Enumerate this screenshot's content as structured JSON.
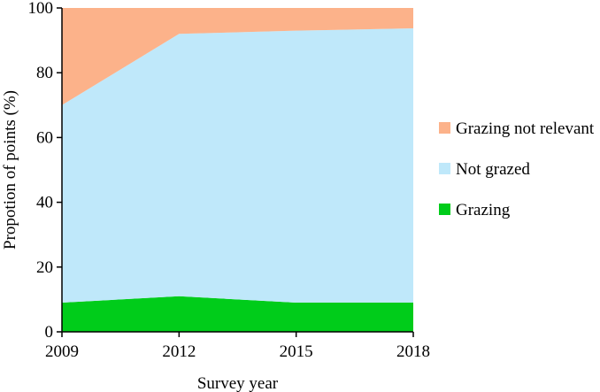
{
  "chart_data": {
    "type": "area",
    "stacked": true,
    "x": [
      2009,
      2012,
      2015,
      2018
    ],
    "xlabel": "Survey year",
    "ylabel": "Propotion of points (%)",
    "ylim": [
      0,
      100
    ],
    "yticks": [
      0,
      20,
      40,
      60,
      80,
      100
    ],
    "grid": false,
    "legend_position": "right",
    "series": [
      {
        "name": "Grazing",
        "values": [
          9,
          11,
          9,
          9
        ],
        "color": "#00cc1a"
      },
      {
        "name": "Not grazed",
        "values": [
          61,
          81,
          84,
          84.7
        ],
        "color": "#bfe8fa"
      },
      {
        "name": "Grazing not relevant",
        "values": [
          30,
          8,
          7,
          6.3
        ],
        "color": "#fcb28a"
      }
    ],
    "legend_order": [
      "Grazing not relevant",
      "Not grazed",
      "Grazing"
    ]
  }
}
